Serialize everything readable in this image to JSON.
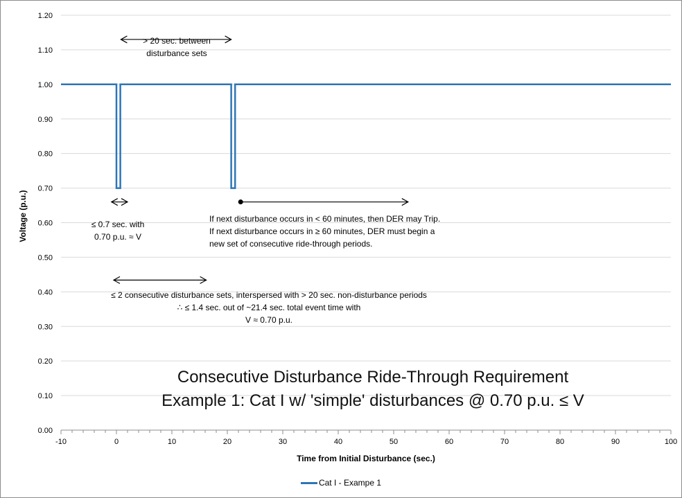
{
  "chart_data": {
    "type": "line",
    "title": "Consecutive Disturbance Ride-Through Requirement",
    "subtitle": "Example 1: Cat I w/ 'simple' disturbances @ 0.70 p.u. ≤ V",
    "xlabel": "Time from Initial Disturbance (sec.)",
    "ylabel": "Voltage (p.u.)",
    "xlim": [
      -10,
      100
    ],
    "ylim": [
      0,
      1.2
    ],
    "x_ticks": [
      "-10",
      "0",
      "10",
      "20",
      "30",
      "40",
      "50",
      "60",
      "70",
      "80",
      "90",
      "100"
    ],
    "y_ticks": [
      "0.00",
      "0.10",
      "0.20",
      "0.30",
      "0.40",
      "0.50",
      "0.60",
      "0.70",
      "0.80",
      "0.90",
      "1.00",
      "1.10",
      "1.20"
    ],
    "grid": "horizontal",
    "legend_position": "bottom",
    "series": [
      {
        "name": "Cat I - Exampe 1",
        "color": "#2e75b6",
        "x": [
          -10,
          0,
          0,
          0.7,
          0.7,
          20.7,
          20.7,
          21.4,
          21.4,
          100
        ],
        "y": [
          1.0,
          1.0,
          0.7,
          0.7,
          1.0,
          1.0,
          0.7,
          0.7,
          1.0,
          1.0
        ]
      }
    ],
    "annotations": {
      "between_sets": "> 20 sec. between\ndisturbance sets",
      "duration": "≤ 0.7 sec. with\n0.70 p.u. ≈ V",
      "next_disturbance": "If next disturbance occurs in < 60 minutes, then DER may Trip.\nIf next disturbance occurs in ≥ 60 minutes, DER must begin a\nnew set of consecutive ride-through periods.",
      "consecutive_sets": "≤ 2 consecutive disturbance sets, interspersed with > 20 sec. non-disturbance periods\n∴ ≤ 1.4 sec. out of ~21.4 sec. total event time with\nV ≈ 0.70 p.u."
    },
    "arrows": [
      {
        "kind": "double",
        "x_from": 0.8,
        "x_to": 20.7,
        "y": 1.13
      },
      {
        "kind": "double",
        "x_from": -0.9,
        "x_to": 2.0,
        "y": 0.66
      },
      {
        "kind": "single_dot",
        "x_from": 22.4,
        "x_to": 52.6,
        "y": 0.66
      },
      {
        "kind": "double",
        "x_from": -0.5,
        "x_to": 16.2,
        "y": 0.434
      }
    ]
  }
}
